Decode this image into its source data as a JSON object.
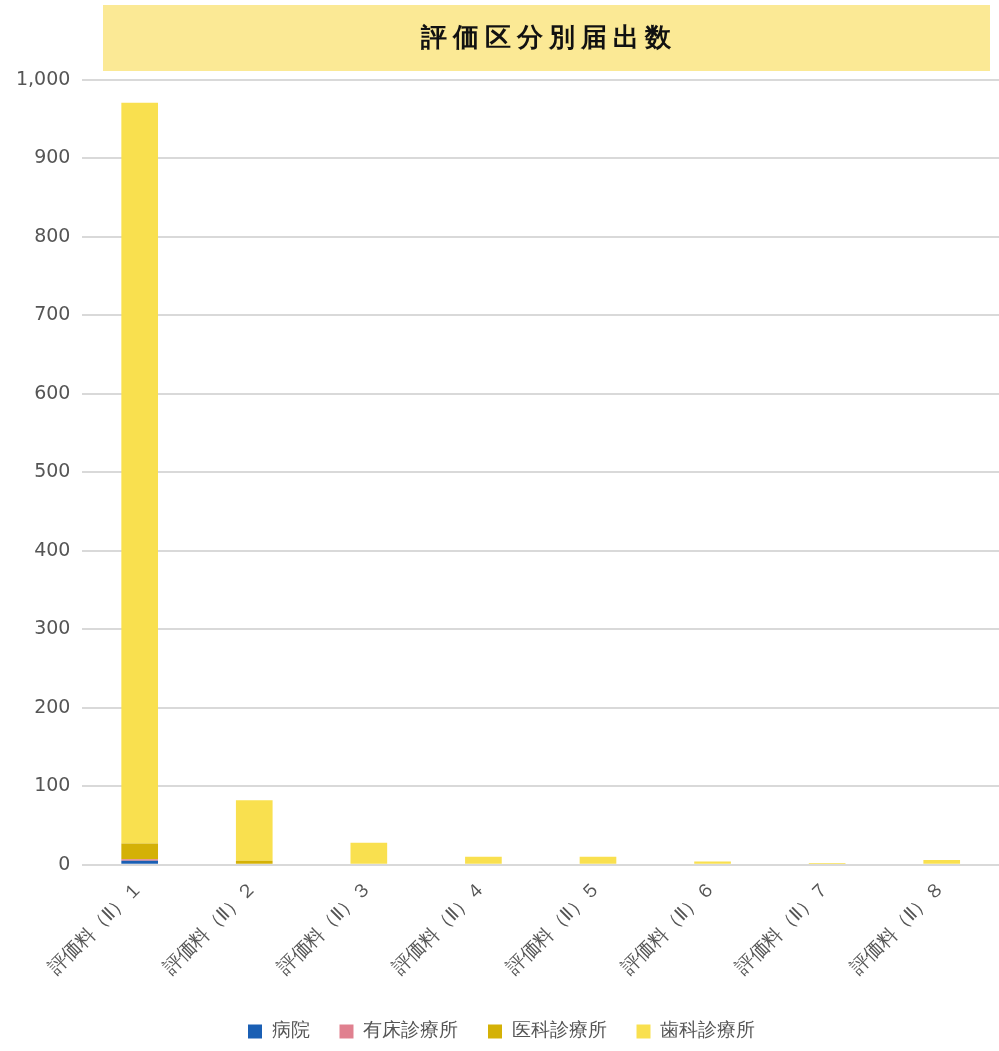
{
  "chart_data": {
    "type": "bar",
    "title": "評価区分別届出数",
    "categories": [
      "評価料（Ⅱ）１",
      "評価料（Ⅱ）２",
      "評価料（Ⅱ）３",
      "評価料（Ⅱ）４",
      "評価料（Ⅱ）５",
      "評価料（Ⅱ）６",
      "評価料（Ⅱ）７",
      "評価料（Ⅱ）８"
    ],
    "series": [
      {
        "name": "病院",
        "color": "#1a5fb4",
        "values": [
          5,
          0,
          0,
          0,
          0,
          0,
          0,
          0
        ]
      },
      {
        "name": "有床診療所",
        "color": "#e0808f",
        "values": [
          2,
          0,
          0,
          0,
          0,
          0,
          0,
          0
        ]
      },
      {
        "name": "医科診療所",
        "color": "#d4b106",
        "values": [
          20,
          5,
          1,
          0,
          0,
          0,
          0,
          0
        ]
      },
      {
        "name": "歯科診療所",
        "color": "#f9e04f",
        "values": [
          944,
          77,
          27,
          10,
          10,
          4,
          2,
          6
        ]
      }
    ],
    "stacked": true,
    "ylim": [
      0,
      1000
    ],
    "yticks": [
      0,
      {
        "value": 100,
        "label": "100"
      },
      200,
      300,
      400,
      500,
      600,
      700,
      800,
      900,
      {
        "value": 1000,
        "label": "1,000"
      }
    ],
    "grid": "y",
    "legend": "bottom"
  }
}
